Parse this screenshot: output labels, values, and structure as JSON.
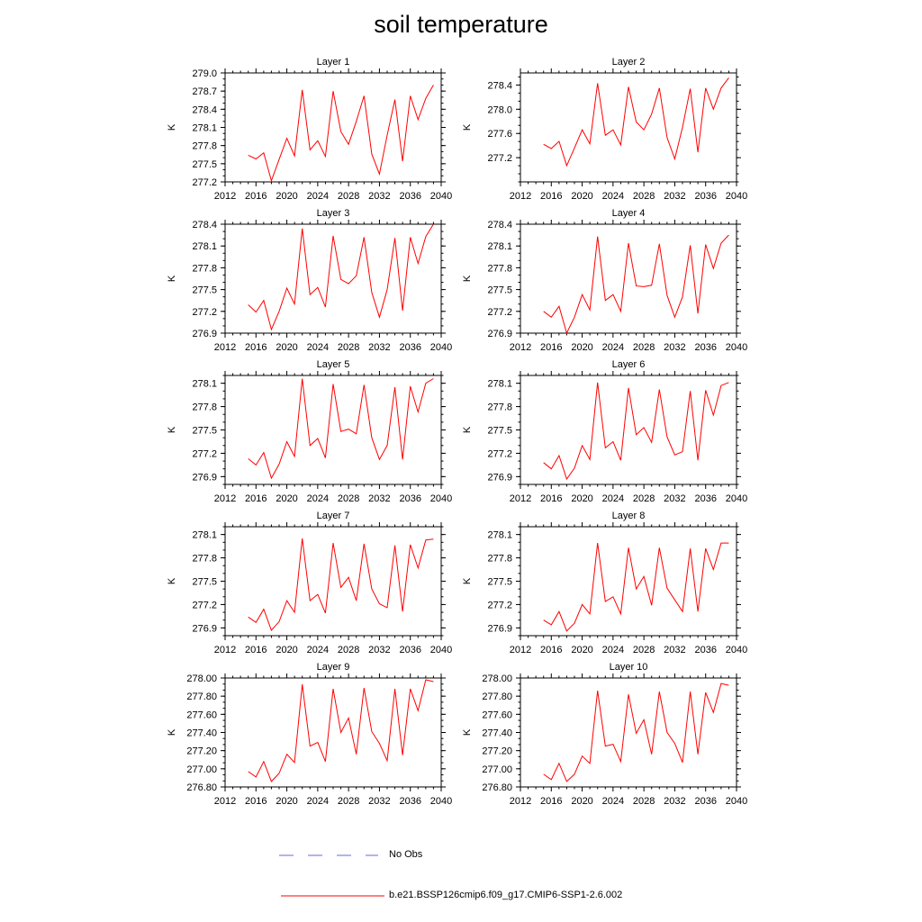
{
  "title": "soil temperature",
  "chart_data": [
    {
      "type": "line",
      "title": "Layer 1",
      "ylabel": "K",
      "ylim": [
        277.2,
        279.0
      ],
      "yticks": [
        "277.2",
        "277.5",
        "277.8",
        "278.1",
        "278.4",
        "278.7",
        "279.0"
      ],
      "xlim": [
        2012,
        2040
      ],
      "xticks": [
        "2012",
        "2016",
        "2020",
        "2024",
        "2028",
        "2032",
        "2036",
        "2040"
      ],
      "series": [
        {
          "name": "b.e21.BSSP126cmip6.f09_g17.CMIP6-SSP1-2.6.002",
          "color": "#ff0000",
          "x": [
            2015,
            2016,
            2017,
            2018,
            2019,
            2020,
            2021,
            2022,
            2023,
            2024,
            2025,
            2026,
            2027,
            2028,
            2029,
            2030,
            2031,
            2032,
            2033,
            2034,
            2035,
            2036,
            2037,
            2038,
            2039
          ],
          "y": [
            277.64,
            277.58,
            277.68,
            277.22,
            277.57,
            277.92,
            277.63,
            278.72,
            277.73,
            277.88,
            277.62,
            278.7,
            278.03,
            277.82,
            278.2,
            278.62,
            277.66,
            277.33,
            277.97,
            278.56,
            277.54,
            278.62,
            278.23,
            278.58,
            278.8
          ]
        }
      ]
    },
    {
      "type": "line",
      "title": "Layer 2",
      "ylabel": "K",
      "ylim": [
        276.8,
        278.6
      ],
      "yticks": [
        "277.2",
        "277.6",
        "278.0",
        "278.4"
      ],
      "xlim": [
        2012,
        2040
      ],
      "xticks": [
        "2012",
        "2016",
        "2020",
        "2024",
        "2028",
        "2032",
        "2036",
        "2040"
      ],
      "series": [
        {
          "name": "b.e21.BSSP126cmip6.f09_g17.CMIP6-SSP1-2.6.002",
          "color": "#ff0000",
          "x": [
            2015,
            2016,
            2017,
            2018,
            2019,
            2020,
            2021,
            2022,
            2023,
            2024,
            2025,
            2026,
            2027,
            2028,
            2029,
            2030,
            2031,
            2032,
            2033,
            2034,
            2035,
            2036,
            2037,
            2038,
            2039
          ],
          "y": [
            277.42,
            277.35,
            277.47,
            277.07,
            277.36,
            277.66,
            277.43,
            278.43,
            277.57,
            277.66,
            277.41,
            278.37,
            277.79,
            277.66,
            277.92,
            278.35,
            277.53,
            277.18,
            277.7,
            278.34,
            277.29,
            278.35,
            278.0,
            278.35,
            278.52
          ]
        }
      ]
    },
    {
      "type": "line",
      "title": "Layer 3",
      "ylabel": "K",
      "ylim": [
        276.9,
        278.4
      ],
      "yticks": [
        "276.9",
        "277.2",
        "277.5",
        "277.8",
        "278.1",
        "278.4"
      ],
      "xlim": [
        2012,
        2040
      ],
      "xticks": [
        "2012",
        "2016",
        "2020",
        "2024",
        "2028",
        "2032",
        "2036",
        "2040"
      ],
      "series": [
        {
          "name": "b.e21.BSSP126cmip6.f09_g17.CMIP6-SSP1-2.6.002",
          "color": "#ff0000",
          "x": [
            2015,
            2016,
            2017,
            2018,
            2019,
            2020,
            2021,
            2022,
            2023,
            2024,
            2025,
            2026,
            2027,
            2028,
            2029,
            2030,
            2031,
            2032,
            2033,
            2034,
            2035,
            2036,
            2037,
            2038,
            2039
          ],
          "y": [
            277.29,
            277.19,
            277.35,
            276.95,
            277.2,
            277.52,
            277.3,
            278.34,
            277.43,
            277.53,
            277.26,
            278.24,
            277.64,
            277.58,
            277.69,
            278.22,
            277.46,
            277.12,
            277.5,
            278.21,
            277.21,
            278.22,
            277.86,
            278.23,
            278.4
          ]
        }
      ]
    },
    {
      "type": "line",
      "title": "Layer 4",
      "ylabel": "K",
      "ylim": [
        276.9,
        278.4
      ],
      "yticks": [
        "276.9",
        "277.2",
        "277.5",
        "277.8",
        "278.1",
        "278.4"
      ],
      "xlim": [
        2012,
        2040
      ],
      "xticks": [
        "2012",
        "2016",
        "2020",
        "2024",
        "2028",
        "2032",
        "2036",
        "2040"
      ],
      "series": [
        {
          "name": "b.e21.BSSP126cmip6.f09_g17.CMIP6-SSP1-2.6.002",
          "color": "#ff0000",
          "x": [
            2015,
            2016,
            2017,
            2018,
            2019,
            2020,
            2021,
            2022,
            2023,
            2024,
            2025,
            2026,
            2027,
            2028,
            2029,
            2030,
            2031,
            2032,
            2033,
            2034,
            2035,
            2036,
            2037,
            2038,
            2039
          ],
          "y": [
            277.2,
            277.12,
            277.27,
            276.9,
            277.12,
            277.43,
            277.22,
            278.23,
            277.35,
            277.43,
            277.2,
            278.14,
            277.55,
            277.54,
            277.56,
            278.13,
            277.42,
            277.12,
            277.4,
            278.11,
            277.17,
            278.12,
            277.79,
            278.14,
            278.25
          ]
        }
      ]
    },
    {
      "type": "line",
      "title": "Layer 5",
      "ylabel": "K",
      "ylim": [
        276.8,
        278.2
      ],
      "yticks": [
        "276.9",
        "277.2",
        "277.5",
        "277.8",
        "278.1"
      ],
      "xlim": [
        2012,
        2040
      ],
      "xticks": [
        "2012",
        "2016",
        "2020",
        "2024",
        "2028",
        "2032",
        "2036",
        "2040"
      ],
      "series": [
        {
          "name": "b.e21.BSSP126cmip6.f09_g17.CMIP6-SSP1-2.6.002",
          "color": "#ff0000",
          "x": [
            2015,
            2016,
            2017,
            2018,
            2019,
            2020,
            2021,
            2022,
            2023,
            2024,
            2025,
            2026,
            2027,
            2028,
            2029,
            2030,
            2031,
            2032,
            2033,
            2034,
            2035,
            2036,
            2037,
            2038,
            2039
          ],
          "y": [
            277.13,
            277.05,
            277.21,
            276.88,
            277.06,
            277.35,
            277.16,
            278.16,
            277.3,
            277.39,
            277.14,
            278.09,
            277.48,
            277.51,
            277.45,
            278.08,
            277.4,
            277.12,
            277.3,
            278.05,
            277.12,
            278.06,
            277.73,
            278.1,
            278.16
          ]
        }
      ]
    },
    {
      "type": "line",
      "title": "Layer 6",
      "ylabel": "K",
      "ylim": [
        276.8,
        278.2
      ],
      "yticks": [
        "276.9",
        "277.2",
        "277.5",
        "277.8",
        "278.1"
      ],
      "xlim": [
        2012,
        2040
      ],
      "xticks": [
        "2012",
        "2016",
        "2020",
        "2024",
        "2028",
        "2032",
        "2036",
        "2040"
      ],
      "series": [
        {
          "name": "b.e21.BSSP126cmip6.f09_g17.CMIP6-SSP1-2.6.002",
          "color": "#ff0000",
          "x": [
            2015,
            2016,
            2017,
            2018,
            2019,
            2020,
            2021,
            2022,
            2023,
            2024,
            2025,
            2026,
            2027,
            2028,
            2029,
            2030,
            2031,
            2032,
            2033,
            2034,
            2035,
            2036,
            2037,
            2038,
            2039
          ],
          "y": [
            277.08,
            277.0,
            277.17,
            276.87,
            277.01,
            277.3,
            277.12,
            278.11,
            277.27,
            277.35,
            277.11,
            278.04,
            277.44,
            277.53,
            277.34,
            278.02,
            277.41,
            277.18,
            277.22,
            278.0,
            277.11,
            278.01,
            277.69,
            278.07,
            278.11
          ]
        }
      ]
    },
    {
      "type": "line",
      "title": "Layer 7",
      "ylabel": "K",
      "ylim": [
        276.8,
        278.2
      ],
      "yticks": [
        "276.9",
        "277.2",
        "277.5",
        "277.8",
        "278.1"
      ],
      "xlim": [
        2012,
        2040
      ],
      "xticks": [
        "2012",
        "2016",
        "2020",
        "2024",
        "2028",
        "2032",
        "2036",
        "2040"
      ],
      "series": [
        {
          "name": "b.e21.BSSP126cmip6.f09_g17.CMIP6-SSP1-2.6.002",
          "color": "#ff0000",
          "x": [
            2015,
            2016,
            2017,
            2018,
            2019,
            2020,
            2021,
            2022,
            2023,
            2024,
            2025,
            2026,
            2027,
            2028,
            2029,
            2030,
            2031,
            2032,
            2033,
            2034,
            2035,
            2036,
            2037,
            2038,
            2039
          ],
          "y": [
            277.04,
            276.97,
            277.14,
            276.87,
            276.98,
            277.25,
            277.1,
            278.05,
            277.25,
            277.33,
            277.09,
            277.99,
            277.42,
            277.55,
            277.25,
            277.98,
            277.4,
            277.21,
            277.16,
            277.96,
            277.11,
            277.97,
            277.67,
            278.03,
            278.04
          ]
        }
      ]
    },
    {
      "type": "line",
      "title": "Layer 8",
      "ylabel": "K",
      "ylim": [
        276.8,
        278.2
      ],
      "yticks": [
        "276.9",
        "277.2",
        "277.5",
        "277.8",
        "278.1"
      ],
      "xlim": [
        2012,
        2040
      ],
      "xticks": [
        "2012",
        "2016",
        "2020",
        "2024",
        "2028",
        "2032",
        "2036",
        "2040"
      ],
      "series": [
        {
          "name": "b.e21.BSSP126cmip6.f09_g17.CMIP6-SSP1-2.6.002",
          "color": "#ff0000",
          "x": [
            2015,
            2016,
            2017,
            2018,
            2019,
            2020,
            2021,
            2022,
            2023,
            2024,
            2025,
            2026,
            2027,
            2028,
            2029,
            2030,
            2031,
            2032,
            2033,
            2034,
            2035,
            2036,
            2037,
            2038,
            2039
          ],
          "y": [
            277.0,
            276.94,
            277.11,
            276.86,
            276.96,
            277.2,
            277.08,
            277.99,
            277.24,
            277.3,
            277.08,
            277.93,
            277.4,
            277.56,
            277.19,
            277.93,
            277.41,
            277.26,
            277.11,
            277.92,
            277.11,
            277.92,
            277.65,
            277.99,
            277.99
          ]
        }
      ]
    },
    {
      "type": "line",
      "title": "Layer 9",
      "ylabel": "K",
      "ylim": [
        276.8,
        278.0
      ],
      "yticks": [
        "276.80",
        "277.00",
        "277.20",
        "277.40",
        "277.60",
        "277.80",
        "278.00"
      ],
      "xlim": [
        2012,
        2040
      ],
      "xticks": [
        "2012",
        "2016",
        "2020",
        "2024",
        "2028",
        "2032",
        "2036",
        "2040"
      ],
      "series": [
        {
          "name": "b.e21.BSSP126cmip6.f09_g17.CMIP6-SSP1-2.6.002",
          "color": "#ff0000",
          "x": [
            2015,
            2016,
            2017,
            2018,
            2019,
            2020,
            2021,
            2022,
            2023,
            2024,
            2025,
            2026,
            2027,
            2028,
            2029,
            2030,
            2031,
            2032,
            2033,
            2034,
            2035,
            2036,
            2037,
            2038,
            2039
          ],
          "y": [
            276.97,
            276.91,
            277.08,
            276.86,
            276.95,
            277.16,
            277.07,
            277.93,
            277.25,
            277.29,
            277.08,
            277.88,
            277.4,
            277.56,
            277.16,
            277.89,
            277.41,
            277.28,
            277.09,
            277.88,
            277.15,
            277.88,
            277.64,
            277.98,
            277.96
          ]
        }
      ]
    },
    {
      "type": "line",
      "title": "Layer 10",
      "ylabel": "K",
      "ylim": [
        276.8,
        278.0
      ],
      "yticks": [
        "276.80",
        "277.00",
        "277.20",
        "277.40",
        "277.60",
        "277.80",
        "278.00"
      ],
      "xlim": [
        2012,
        2040
      ],
      "xticks": [
        "2012",
        "2016",
        "2020",
        "2024",
        "2028",
        "2032",
        "2036",
        "2040"
      ],
      "series": [
        {
          "name": "b.e21.BSSP126cmip6.f09_g17.CMIP6-SSP1-2.6.002",
          "color": "#ff0000",
          "x": [
            2015,
            2016,
            2017,
            2018,
            2019,
            2020,
            2021,
            2022,
            2023,
            2024,
            2025,
            2026,
            2027,
            2028,
            2029,
            2030,
            2031,
            2032,
            2033,
            2034,
            2035,
            2036,
            2037,
            2038,
            2039
          ],
          "y": [
            276.94,
            276.88,
            277.06,
            276.86,
            276.94,
            277.14,
            277.06,
            277.86,
            277.25,
            277.27,
            277.08,
            277.82,
            277.39,
            277.54,
            277.16,
            277.85,
            277.4,
            277.28,
            277.07,
            277.85,
            277.16,
            277.84,
            277.62,
            277.94,
            277.92
          ]
        }
      ]
    }
  ],
  "legend": [
    {
      "label": "No Obs",
      "color": "#6a6ad8",
      "style": "dashed"
    },
    {
      "label": "b.e21.BSSP126cmip6.f09_g17.CMIP6-SSP1-2.6.002",
      "color": "#ff0000",
      "style": "solid"
    }
  ]
}
